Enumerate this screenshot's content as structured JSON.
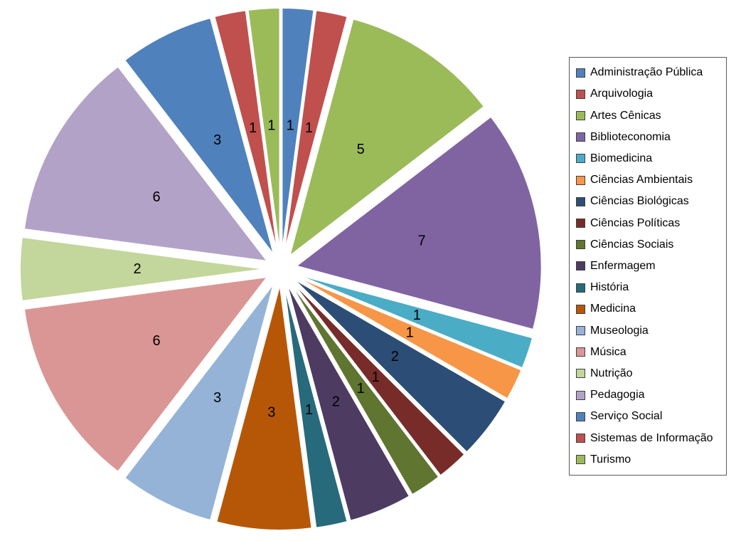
{
  "chart_data": {
    "type": "pie",
    "title": "",
    "style": "exploded",
    "start_angle_deg": 0,
    "direction": "clockwise",
    "legend_position": "right",
    "background_color": "#FFFFFF",
    "legend_border_color": "#595959",
    "label_content": "values",
    "label_color": "#000000",
    "total": 48,
    "categories": [
      "Administração Pública",
      "Arquivologia",
      "Artes Cênicas",
      "Biblioteconomia",
      "Biomedicina",
      "Ciências Ambientais",
      "Ciências Biológicas",
      "Ciências Políticas",
      "Ciências Sociais",
      "Enfermagem",
      "História",
      "Medicina",
      "Museologia",
      "Música",
      "Nutrição",
      "Pedagogia",
      "Serviço Social",
      "Sistemas de Informação",
      "Turismo"
    ],
    "values": [
      1,
      1,
      5,
      7,
      1,
      1,
      2,
      1,
      1,
      2,
      1,
      3,
      3,
      6,
      2,
      6,
      3,
      1,
      1
    ],
    "colors": [
      "#4F81BD",
      "#C0504D",
      "#9BBB59",
      "#8064A2",
      "#4BACC6",
      "#F79646",
      "#2C4D75",
      "#772C2A",
      "#5F7530",
      "#4D3B62",
      "#276A7C",
      "#B65708",
      "#95B3D7",
      "#D99694",
      "#C3D69B",
      "#B3A2C7",
      "#4F81BD",
      "#C0504D",
      "#9BBB59"
    ]
  }
}
